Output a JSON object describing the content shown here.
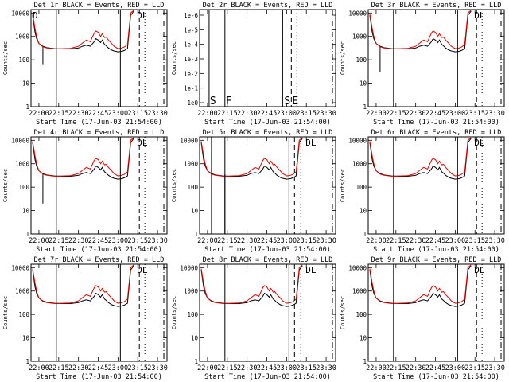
{
  "figure_title": "RHESSI detector count rates",
  "colors": {
    "events": "#000000",
    "lld": "#e00000",
    "background": "#ffffff"
  },
  "chart_data": [
    {
      "type": "line",
      "title": "Det 1r BLACK = Events, RED = LLD",
      "xlabel": "Start Time (17-Jun-03 21:54:00)",
      "ylabel": "Counts/sec",
      "xticks": [
        "22:00",
        "22:15",
        "22:30",
        "22:45",
        "23:00",
        "23:15",
        "23:30"
      ],
      "yticks": [
        "1",
        "10",
        "100",
        "1000",
        "10000"
      ],
      "ylim": [
        1,
        14000
      ],
      "series": [
        "Events",
        "LLD"
      ],
      "markers": {
        "solid": [
          22.22,
          23.03
        ],
        "dash": [
          23.27
        ],
        "dot": [
          23.34
        ],
        "dashdot": [
          23.58
        ]
      },
      "flags": [
        "D",
        "DL"
      ],
      "dropouts": [
        {
          "t": 22.05,
          "y": 60
        }
      ],
      "variant": "normal"
    },
    {
      "type": "line",
      "title": "Det 2r BLACK = Events, RED = LLD",
      "xlabel": "Start Time (17-Jun-03 21:54:00)",
      "ylabel": "Counts/sec",
      "xticks": [
        "22:00",
        "22:15",
        "22:30",
        "22:45",
        "23:00",
        "23:15",
        "23:30"
      ],
      "yticks": [
        "1e0",
        "1e-1",
        "1e-2",
        "1e-3",
        "1e-4",
        "1e-5",
        "1e-6"
      ],
      "ylim": [
        1,
        1e-06
      ],
      "series": [],
      "markers": {
        "solid": [
          22.02,
          22.22,
          22.95
        ],
        "dash": [
          23.06
        ],
        "dot": [
          23.13
        ],
        "dashdot": [
          23.58
        ]
      },
      "flags": [
        "S",
        "F",
        "S",
        "E"
      ],
      "dropouts": [],
      "variant": "empty"
    },
    {
      "type": "line",
      "title": "Det 3r BLACK = Events, RED = LLD",
      "xlabel": "Start Time (17-Jun-03 21:54:00)",
      "ylabel": "Counts/sec",
      "xticks": [
        "22:00",
        "22:15",
        "22:30",
        "22:45",
        "23:00",
        "23:15",
        "23:30"
      ],
      "yticks": [
        "1",
        "10",
        "100",
        "1000",
        "10000"
      ],
      "ylim": [
        1,
        14000
      ],
      "series": [
        "Events",
        "LLD"
      ],
      "markers": {
        "solid": [
          22.22,
          23.03
        ],
        "dash": [
          23.27
        ],
        "dot": [
          23.34
        ],
        "dashdot": [
          23.58
        ]
      },
      "flags": [
        "DL"
      ],
      "dropouts": [
        {
          "t": 22.05,
          "y": 30
        }
      ],
      "variant": "normal"
    },
    {
      "type": "line",
      "title": "Det 4r BLACK = Events, RED = LLD",
      "xlabel": "Start Time (17-Jun-03 21:54:00)",
      "ylabel": "Counts/sec",
      "xticks": [
        "22:00",
        "22:15",
        "22:30",
        "22:45",
        "23:00",
        "23:15",
        "23:30"
      ],
      "yticks": [
        "1",
        "10",
        "100",
        "1000",
        "10000"
      ],
      "ylim": [
        1,
        14000
      ],
      "series": [
        "Events",
        "LLD"
      ],
      "markers": {
        "solid": [
          22.22,
          23.03
        ],
        "dash": [
          23.27
        ],
        "dot": [
          23.34
        ],
        "dashdot": [
          23.58
        ]
      },
      "flags": [
        "DL"
      ],
      "dropouts": [
        {
          "t": 22.05,
          "y": 20
        }
      ],
      "variant": "normal"
    },
    {
      "type": "line",
      "title": "Det 5r BLACK = Events, RED = LLD",
      "xlabel": "Start Time (17-Jun-03 21:54:00)",
      "ylabel": "Counts/sec",
      "xticks": [
        "22:00",
        "22:15",
        "22:30",
        "22:45",
        "23:00",
        "23:15",
        "23:30"
      ],
      "yticks": [
        "1",
        "10",
        "100",
        "1000",
        "10000"
      ],
      "ylim": [
        1,
        14000
      ],
      "series": [
        "Events",
        "LLD"
      ],
      "markers": {
        "solid": [
          22.05,
          22.22,
          23.03
        ],
        "dash": [
          23.1
        ],
        "dot": [
          23.18
        ],
        "dashdot": [
          23.58
        ]
      },
      "flags": [
        "DL"
      ],
      "dropouts": [
        {
          "t": 22.22,
          "y": 1
        }
      ],
      "variant": "normal"
    },
    {
      "type": "line",
      "title": "Det 6r BLACK = Events, RED = LLD",
      "xlabel": "Start Time (17-Jun-03 21:54:00)",
      "ylabel": "Counts/sec",
      "xticks": [
        "22:00",
        "22:15",
        "22:30",
        "22:45",
        "23:00",
        "23:15",
        "23:30"
      ],
      "yticks": [
        "1",
        "10",
        "100",
        "1000",
        "10000"
      ],
      "ylim": [
        1,
        14000
      ],
      "series": [
        "Events",
        "LLD"
      ],
      "markers": {
        "solid": [
          22.22,
          23.03
        ],
        "dash": [
          23.27
        ],
        "dot": [
          23.34
        ],
        "dashdot": [
          23.58
        ]
      },
      "flags": [
        "DL"
      ],
      "dropouts": [],
      "variant": "normal"
    },
    {
      "type": "line",
      "title": "Det 7r BLACK = Events, RED = LLD",
      "xlabel": "Start Time (17-Jun-03 21:54:00)",
      "ylabel": "Counts/sec",
      "xticks": [
        "22:00",
        "22:15",
        "22:30",
        "22:45",
        "23:00",
        "23:15",
        "23:30"
      ],
      "yticks": [
        "1",
        "10",
        "100",
        "1000",
        "10000"
      ],
      "ylim": [
        1,
        14000
      ],
      "series": [
        "Events",
        "LLD"
      ],
      "markers": {
        "solid": [
          22.22,
          23.03
        ],
        "dash": [
          23.27
        ],
        "dot": [
          23.34
        ],
        "dashdot": [
          23.58
        ]
      },
      "flags": [
        "DL"
      ],
      "dropouts": [],
      "variant": "normal"
    },
    {
      "type": "line",
      "title": "Det 8r BLACK = Events, RED = LLD",
      "xlabel": "Start Time (17-Jun-03 21:54:00)",
      "ylabel": "Counts/sec",
      "xticks": [
        "22:00",
        "22:15",
        "22:30",
        "22:45",
        "23:00",
        "23:15",
        "23:30"
      ],
      "yticks": [
        "1",
        "10",
        "100",
        "1000",
        "10000"
      ],
      "ylim": [
        1,
        14000
      ],
      "series": [
        "Events",
        "LLD"
      ],
      "markers": {
        "solid": [
          22.22,
          23.03
        ],
        "dash": [
          23.1
        ],
        "dot": [
          23.18
        ],
        "dashdot": [
          23.58
        ]
      },
      "flags": [
        "DL"
      ],
      "dropouts": [],
      "variant": "normal"
    },
    {
      "type": "line",
      "title": "Det 9r BLACK = Events, RED = LLD",
      "xlabel": "Start Time (17-Jun-03 21:54:00)",
      "ylabel": "Counts/sec",
      "xticks": [
        "22:00",
        "22:15",
        "22:30",
        "22:45",
        "23:00",
        "23:15",
        "23:30"
      ],
      "yticks": [
        "1",
        "10",
        "100",
        "1000",
        "10000"
      ],
      "ylim": [
        1,
        14000
      ],
      "series": [
        "Events",
        "LLD"
      ],
      "markers": {
        "solid": [
          22.22,
          23.03
        ],
        "dash": [
          23.27
        ],
        "dot": [
          23.34
        ],
        "dashdot": [
          23.58
        ]
      },
      "flags": [
        "DL"
      ],
      "dropouts": [],
      "variant": "normal"
    }
  ],
  "curve": {
    "t": [
      21.92,
      21.95,
      21.97,
      22.0,
      22.05,
      22.1,
      22.2,
      22.3,
      22.4,
      22.5,
      22.55,
      22.6,
      22.65,
      22.7,
      22.72,
      22.75,
      22.78,
      22.8,
      22.83,
      22.85,
      22.88,
      22.92,
      22.95,
      23.0,
      23.05,
      23.08,
      23.12,
      23.16,
      23.2
    ],
    "events": [
      8000,
      1500,
      800,
      500,
      380,
      330,
      300,
      290,
      290,
      320,
      380,
      420,
      380,
      600,
      800,
      700,
      550,
      700,
      450,
      400,
      320,
      260,
      240,
      220,
      230,
      250,
      300,
      8000,
      12000
    ],
    "lld": [
      9000,
      2200,
      1000,
      500,
      360,
      320,
      290,
      300,
      310,
      380,
      520,
      700,
      600,
      1400,
      1700,
      1500,
      1000,
      1300,
      900,
      950,
      700,
      500,
      380,
      300,
      320,
      350,
      450,
      10000,
      13000
    ]
  }
}
